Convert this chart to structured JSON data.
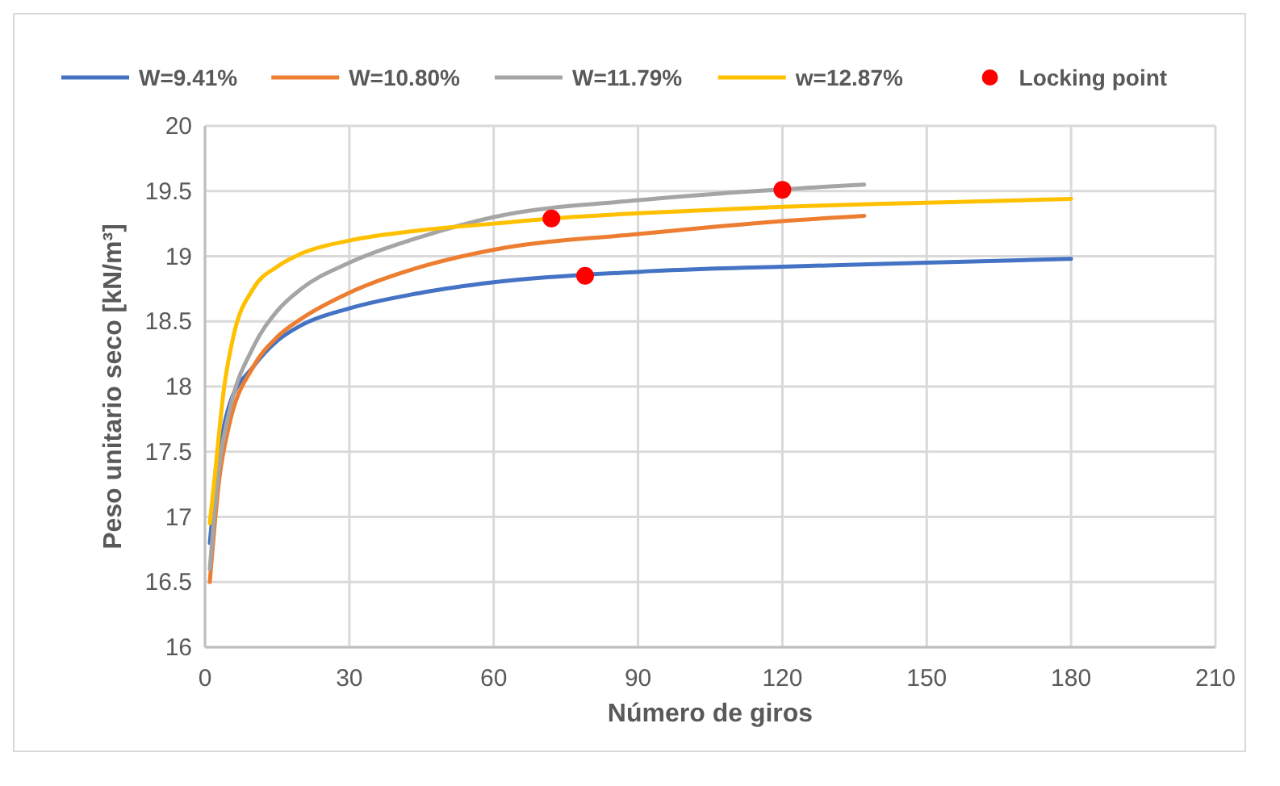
{
  "chart_data": {
    "type": "line",
    "xlabel": "Número de giros",
    "ylabel": "Peso unitario seco [kN/m³]",
    "xlim": [
      0,
      210
    ],
    "xticks": [
      0,
      30,
      60,
      90,
      120,
      150,
      180,
      210
    ],
    "ylim": [
      16,
      20
    ],
    "yticks": [
      16,
      16.5,
      17,
      17.5,
      18,
      18.5,
      19,
      19.5,
      20
    ],
    "grid": true,
    "legend": "top",
    "marker": "none",
    "line_style": "solid",
    "series": [
      {
        "name": "W=9.41%",
        "color": "#4472c4",
        "x": [
          1,
          3,
          5,
          10,
          15,
          20,
          30,
          45,
          60,
          90,
          120,
          150,
          180
        ],
        "values": [
          16.8,
          17.5,
          17.85,
          18.15,
          18.35,
          18.47,
          18.6,
          18.72,
          18.8,
          18.88,
          18.92,
          18.95,
          18.98
        ]
      },
      {
        "name": "W=10.80%",
        "color": "#ed7d31",
        "x": [
          1,
          3,
          5,
          10,
          15,
          20,
          30,
          45,
          60,
          90,
          120,
          137
        ],
        "values": [
          16.5,
          17.3,
          17.7,
          18.15,
          18.38,
          18.52,
          18.72,
          18.92,
          19.05,
          19.17,
          19.27,
          19.31
        ]
      },
      {
        "name": "W=11.79%",
        "color": "#a5a5a5",
        "x": [
          1,
          3,
          5,
          10,
          15,
          20,
          30,
          45,
          60,
          90,
          137
        ],
        "values": [
          16.6,
          17.4,
          17.8,
          18.3,
          18.58,
          18.75,
          18.95,
          19.15,
          19.3,
          19.43,
          19.55
        ]
      },
      {
        "name": "w=12.87%",
        "color": "#ffc000",
        "x": [
          1,
          2,
          4,
          6,
          10,
          15,
          20,
          30,
          45,
          60,
          72,
          90,
          120,
          150,
          180
        ],
        "values": [
          16.95,
          17.3,
          18.0,
          18.4,
          18.75,
          18.92,
          19.02,
          19.12,
          19.2,
          19.25,
          19.29,
          19.33,
          19.38,
          19.41,
          19.44
        ]
      },
      {
        "name": "Locking point",
        "type": "scatter",
        "marker": "circle",
        "color": "#ff0000",
        "x": [
          72,
          79,
          120
        ],
        "values": [
          19.29,
          18.85,
          19.51
        ]
      }
    ]
  }
}
